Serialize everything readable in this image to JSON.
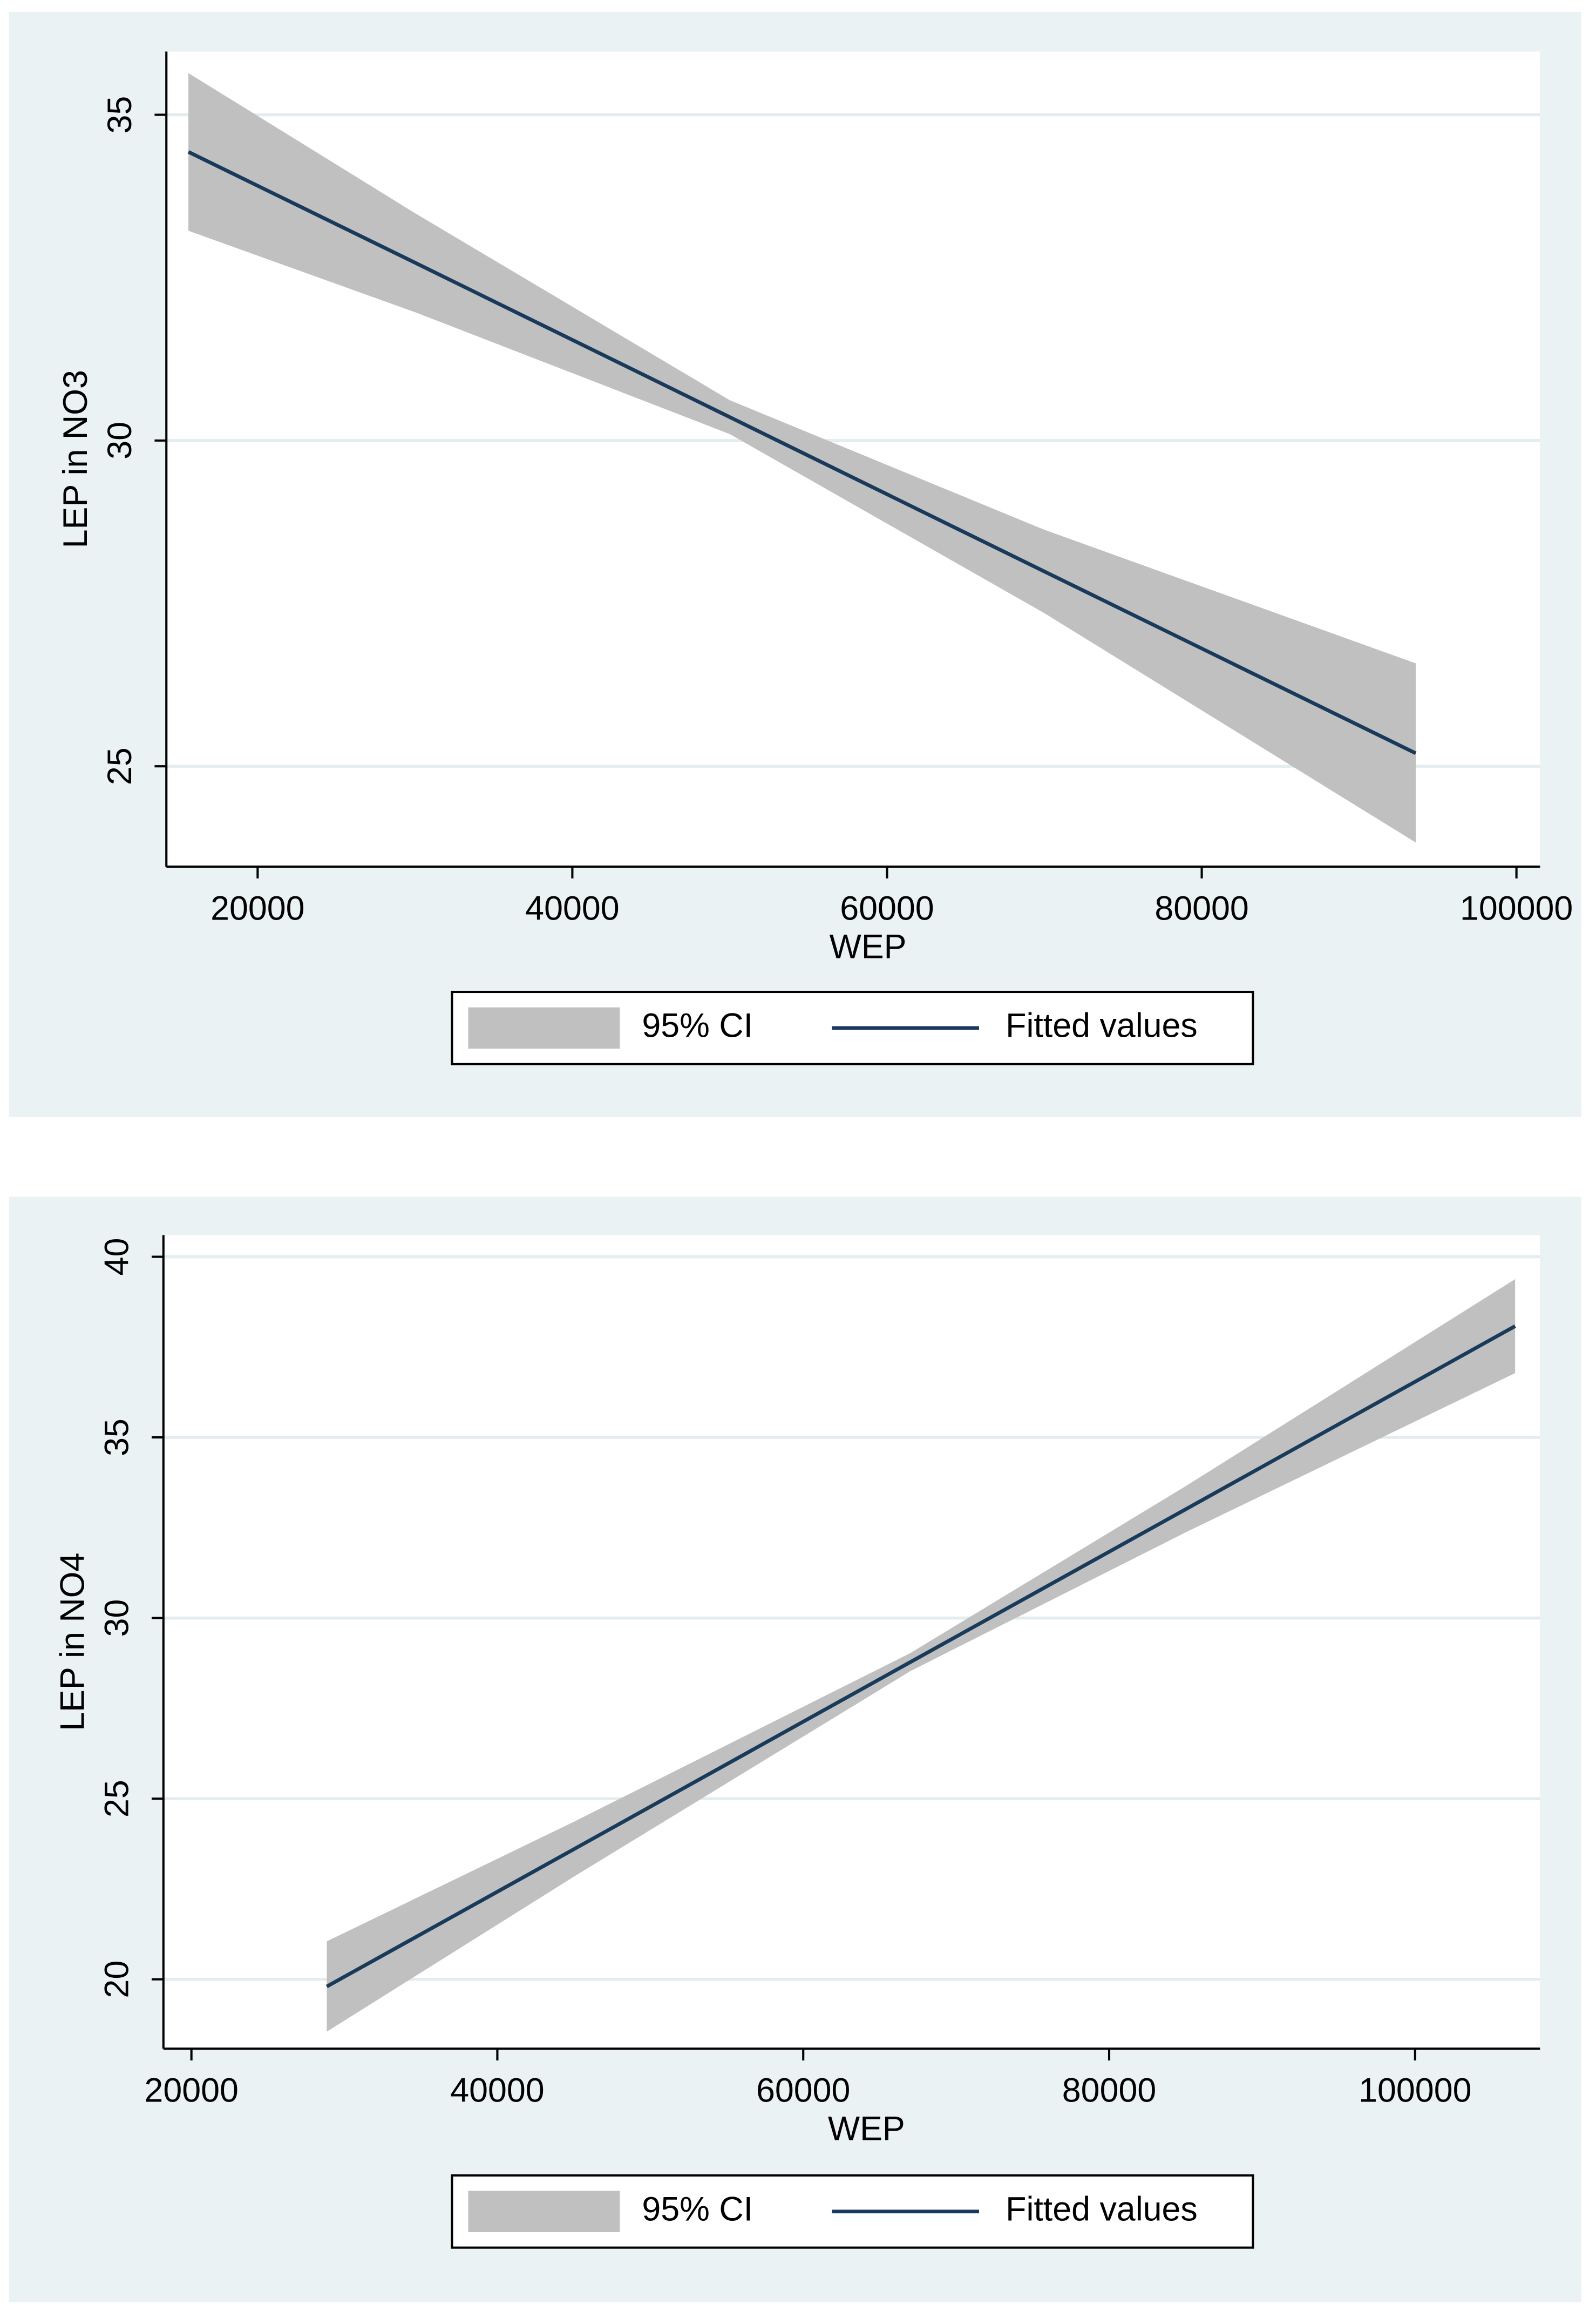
{
  "chart_data": [
    {
      "type": "line",
      "x_label": "WEP",
      "y_label": "LEP in NO3",
      "x": [
        15600,
        30000,
        50000,
        70000,
        93600
      ],
      "series": [
        {
          "name": "95% CI",
          "color": "#c0c0c0",
          "lower": [
            33.22,
            31.97,
            30.1,
            27.35,
            23.83
          ],
          "upper": [
            35.64,
            33.49,
            30.62,
            28.63,
            26.58
          ]
        },
        {
          "name": "Fitted values",
          "color": "#1a3a5c",
          "values": [
            34.43,
            32.73,
            30.36,
            27.99,
            25.2
          ]
        }
      ],
      "xlim": [
        14200,
        101500
      ],
      "xticks": [
        20000,
        40000,
        60000,
        80000,
        100000
      ],
      "ylim": [
        23.46,
        35.97
      ],
      "yticks": [
        25,
        30,
        35
      ],
      "grid": true,
      "legend": "bottom"
    },
    {
      "type": "line",
      "x_label": "WEP",
      "y_label": "LEP in NO4",
      "x": [
        28850,
        45000,
        67000,
        85000,
        106540
      ],
      "series": [
        {
          "name": "95% CI",
          "color": "#c0c0c0",
          "lower": [
            18.55,
            22.84,
            28.53,
            32.37,
            36.78
          ],
          "upper": [
            21.05,
            24.36,
            29.03,
            33.65,
            39.38
          ]
        },
        {
          "name": "Fitted values",
          "color": "#1a3a5c",
          "values": [
            19.8,
            23.6,
            28.78,
            33.01,
            38.08
          ]
        }
      ],
      "xlim": [
        18170,
        108170
      ],
      "xticks": [
        20000,
        40000,
        60000,
        80000,
        100000
      ],
      "ylim": [
        18.08,
        40.6
      ],
      "yticks": [
        20,
        25,
        30,
        35,
        40
      ],
      "grid": true,
      "legend": "bottom"
    }
  ]
}
